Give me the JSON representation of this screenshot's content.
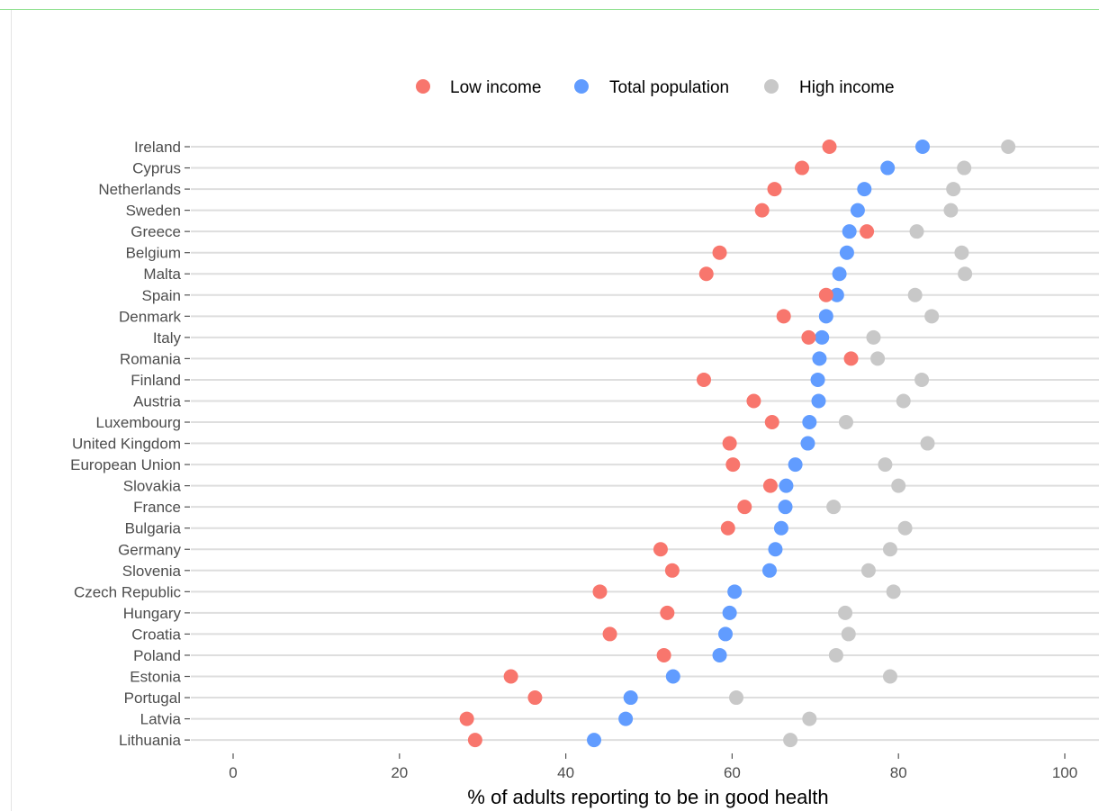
{
  "chart_data": {
    "type": "scatter",
    "xlabel": "% of adults reporting to be in good health",
    "xlim": [
      -5,
      104
    ],
    "xticks": [
      0,
      20,
      40,
      60,
      80,
      100
    ],
    "legend_position": "top",
    "series": [
      {
        "name": "Low income",
        "color": "#f8766d"
      },
      {
        "name": "Total population",
        "color": "#619cff"
      },
      {
        "name": "High income",
        "color": "#c8c8c8"
      }
    ],
    "categories": [
      "Ireland",
      "Cyprus",
      "Netherlands",
      "Sweden",
      "Greece",
      "Belgium",
      "Malta",
      "Spain",
      "Denmark",
      "Italy",
      "Romania",
      "Finland",
      "Austria",
      "Luxembourg",
      "United Kingdom",
      "European Union",
      "Slovakia",
      "France",
      "Bulgaria",
      "Germany",
      "Slovenia",
      "Czech Republic",
      "Hungary",
      "Croatia",
      "Poland",
      "Estonia",
      "Portugal",
      "Latvia",
      "Lithuania"
    ],
    "values": {
      "Low income": [
        71.7,
        68.4,
        65.1,
        63.6,
        76.2,
        58.5,
        56.9,
        71.3,
        66.2,
        69.2,
        74.3,
        56.6,
        62.6,
        64.8,
        59.7,
        60.1,
        64.6,
        61.5,
        59.5,
        51.4,
        52.8,
        44.1,
        52.2,
        45.3,
        51.8,
        33.4,
        36.3,
        28.1,
        29.1
      ],
      "Total population": [
        82.9,
        78.7,
        75.9,
        75.1,
        74.1,
        73.8,
        72.9,
        72.6,
        71.3,
        70.8,
        70.5,
        70.3,
        70.4,
        69.3,
        69.1,
        67.6,
        66.5,
        66.4,
        65.9,
        65.2,
        64.5,
        60.3,
        59.7,
        59.2,
        58.5,
        52.9,
        47.8,
        47.2,
        43.4
      ],
      "High income": [
        93.2,
        87.9,
        86.6,
        86.3,
        82.2,
        87.6,
        88.0,
        82.0,
        84.0,
        77.0,
        77.5,
        82.8,
        80.6,
        73.7,
        83.5,
        78.4,
        80.0,
        72.2,
        80.8,
        79.0,
        76.4,
        79.4,
        73.6,
        74.0,
        72.5,
        79.0,
        60.5,
        69.3,
        67.0
      ]
    }
  }
}
